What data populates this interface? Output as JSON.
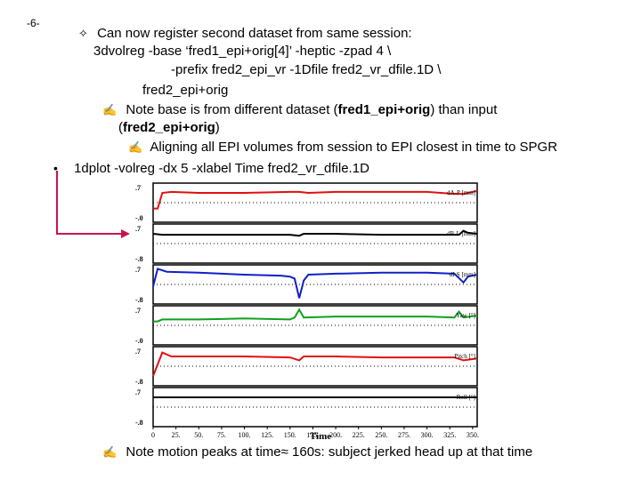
{
  "slide_number": "-6-",
  "bullets": {
    "l1_symbol": "✧",
    "l1_text": "Can now register second dataset from same session:",
    "cmd_line1": "3dvolreg -base ‘fred1_epi+orig[4]’ -heptic -zpad 4  \\",
    "cmd_line2": "-prefix fred2_epi_vr -1Dfile fred2_vr_dfile.1D \\",
    "cmd_line3": "fred2_epi+orig",
    "note_symbol": "✍",
    "note_a": "Note base is from different dataset (",
    "note_b": "fred1_epi+orig",
    "note_c": ") than input",
    "note_d": "(",
    "note_e": "fred2_epi+orig",
    "note_f": ")",
    "align_symbol": "✍",
    "align_text": "Aligning all EPI volumes from session to EPI closest in time to SPGR",
    "dot_symbol": "•",
    "plot_cmd": "1dplot -volreg -dx 5 -xlabel Time fred2_vr_dfile.1D",
    "motion_symbol": "✍",
    "motion_a": "Note motion peaks at time",
    "motion_approx": "≈",
    "motion_b": " 160s: subject jerked head up at that time"
  },
  "chart_data": {
    "type": "line",
    "xlabel": "Time",
    "x_ticks": [
      "0",
      "25.",
      "50.",
      "75.",
      "100.",
      "125.",
      "150.",
      "175.",
      "200.",
      "225.",
      "250.",
      "275.",
      "300.",
      "325.",
      "350."
    ],
    "xlim": [
      0,
      355
    ],
    "panels": [
      {
        "name": "dA-P [mm]",
        "color": "#e01010",
        "ytop": ".7",
        "ybot": "-.0",
        "points": [
          [
            0,
            -0.3
          ],
          [
            5,
            -0.3
          ],
          [
            10,
            0.5
          ],
          [
            20,
            0.55
          ],
          [
            50,
            0.5
          ],
          [
            100,
            0.5
          ],
          [
            150,
            0.55
          ],
          [
            160,
            0.55
          ],
          [
            170,
            0.5
          ],
          [
            200,
            0.55
          ],
          [
            250,
            0.55
          ],
          [
            300,
            0.55
          ],
          [
            330,
            0.45
          ],
          [
            340,
            0.45
          ],
          [
            355,
            0.6
          ]
        ]
      },
      {
        "name": "dR-L [mm]",
        "color": "#000000",
        "ytop": ".7",
        "ybot": "-.8",
        "points": [
          [
            0,
            0.5
          ],
          [
            10,
            0.45
          ],
          [
            50,
            0.45
          ],
          [
            100,
            0.45
          ],
          [
            150,
            0.45
          ],
          [
            160,
            0.4
          ],
          [
            165,
            0.5
          ],
          [
            200,
            0.5
          ],
          [
            250,
            0.45
          ],
          [
            300,
            0.45
          ],
          [
            335,
            0.45
          ],
          [
            340,
            0.65
          ],
          [
            345,
            0.55
          ],
          [
            355,
            0.5
          ]
        ]
      },
      {
        "name": "dI-S [mm]",
        "color": "#1020c8",
        "ytop": ".7",
        "ybot": "-.8",
        "points": [
          [
            0,
            -0.1
          ],
          [
            5,
            0.8
          ],
          [
            15,
            0.65
          ],
          [
            50,
            0.6
          ],
          [
            100,
            0.5
          ],
          [
            140,
            0.45
          ],
          [
            150,
            0.4
          ],
          [
            155,
            0.3
          ],
          [
            160,
            -0.7
          ],
          [
            165,
            0.2
          ],
          [
            170,
            0.5
          ],
          [
            200,
            0.55
          ],
          [
            250,
            0.6
          ],
          [
            300,
            0.6
          ],
          [
            330,
            0.55
          ],
          [
            340,
            0.1
          ],
          [
            345,
            0.4
          ],
          [
            355,
            0.5
          ]
        ]
      },
      {
        "name": "Yaw [°]",
        "color": "#10a020",
        "ytop": ".7",
        "ybot": "-.0",
        "points": [
          [
            0,
            0.2
          ],
          [
            5,
            0.2
          ],
          [
            10,
            0.3
          ],
          [
            50,
            0.3
          ],
          [
            100,
            0.35
          ],
          [
            150,
            0.3
          ],
          [
            155,
            0.4
          ],
          [
            160,
            0.8
          ],
          [
            165,
            0.4
          ],
          [
            200,
            0.45
          ],
          [
            250,
            0.45
          ],
          [
            300,
            0.45
          ],
          [
            330,
            0.4
          ],
          [
            335,
            0.7
          ],
          [
            340,
            0.4
          ],
          [
            355,
            0.5
          ]
        ]
      },
      {
        "name": "Pitch [°]",
        "color": "#e01010",
        "ytop": ".7",
        "ybot": "-.8",
        "points": [
          [
            0,
            -0.5
          ],
          [
            10,
            0.7
          ],
          [
            20,
            0.5
          ],
          [
            50,
            0.5
          ],
          [
            100,
            0.5
          ],
          [
            150,
            0.45
          ],
          [
            160,
            0.3
          ],
          [
            165,
            0.5
          ],
          [
            200,
            0.5
          ],
          [
            250,
            0.45
          ],
          [
            300,
            0.45
          ],
          [
            330,
            0.45
          ],
          [
            340,
            0.3
          ],
          [
            355,
            0.4
          ]
        ]
      },
      {
        "name": "Roll [°]",
        "color": "#000000",
        "ytop": ".7",
        "ybot": "-.8",
        "points": [
          [
            0,
            0.5
          ],
          [
            50,
            0.5
          ],
          [
            100,
            0.5
          ],
          [
            150,
            0.5
          ],
          [
            200,
            0.5
          ],
          [
            250,
            0.5
          ],
          [
            300,
            0.5
          ],
          [
            355,
            0.5
          ]
        ]
      }
    ]
  }
}
